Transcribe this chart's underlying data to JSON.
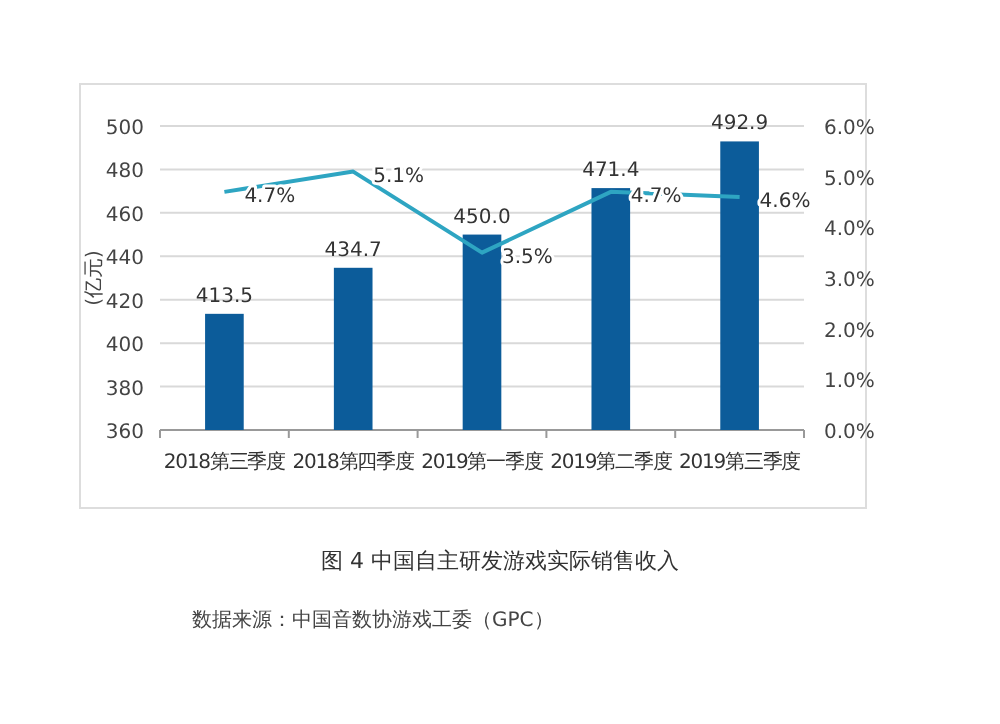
{
  "chart_data": {
    "type": "bar",
    "title": "图 4 中国自主研发游戏实际销售收入",
    "ylabel": "(亿元)",
    "annotations": [
      "数据来源：中国音数协游戏工委（GPC）"
    ],
    "categories": [
      "2018第三季度",
      "2018第四季度",
      "2019第一季度",
      "2019第二季度",
      "2019第三季度"
    ],
    "series": [
      {
        "color": "#0c5c9a",
        "values": [
          413.5,
          434.7,
          450.0,
          471.4,
          492.9
        ],
        "value_labels": [
          "413.5",
          "434.7",
          "450.0",
          "471.4",
          "492.9"
        ]
      },
      {
        "type": "line",
        "axis": "y2",
        "color": "#2ea5c2",
        "values": [
          4.7,
          5.1,
          3.5,
          4.7,
          4.6
        ],
        "value_labels": [
          "4.7%",
          "5.1%",
          "3.5%",
          "4.7%",
          "4.6%"
        ]
      }
    ],
    "ylim": [
      360,
      500
    ],
    "yticks": [
      360,
      380,
      400,
      420,
      440,
      460,
      480,
      500
    ],
    "y2lim": [
      0,
      6
    ],
    "y2ticks": [
      {
        "value": 0,
        "label": "0.0%"
      },
      {
        "value": 1,
        "label": "1.0%"
      },
      {
        "value": 2,
        "label": "2.0%"
      },
      {
        "value": 3,
        "label": "3.0%"
      },
      {
        "value": 4,
        "label": "4.0%"
      },
      {
        "value": 5,
        "label": "5.0%"
      },
      {
        "value": 6,
        "label": "6.0%"
      }
    ],
    "grid": "y",
    "marker": "none",
    "line_style": "solid"
  }
}
